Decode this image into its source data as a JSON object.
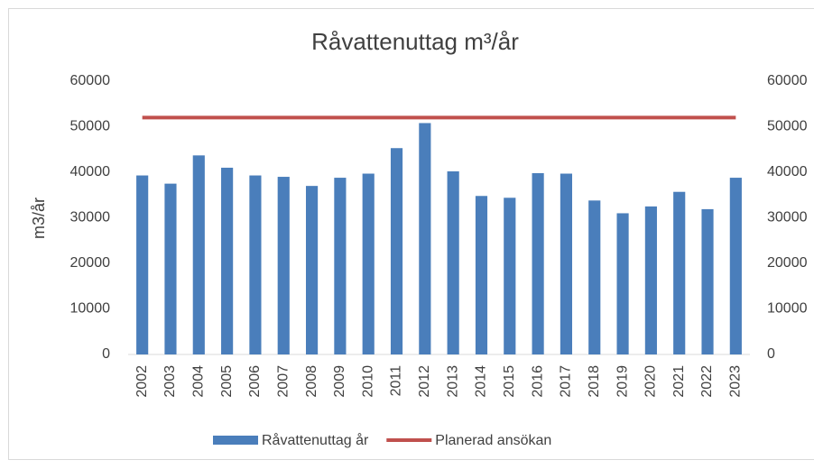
{
  "chart_data": {
    "type": "bar",
    "title": "Råvattenuttag m³/år",
    "y_label": "m3/år",
    "categories": [
      "2002",
      "2003",
      "2004",
      "2005",
      "2006",
      "2007",
      "2008",
      "2009",
      "2010",
      "2011",
      "2012",
      "2013",
      "2014",
      "2015",
      "2016",
      "2017",
      "2018",
      "2019",
      "2020",
      "2021",
      "2022",
      "2023"
    ],
    "series": [
      {
        "name": "Råvattenuttag år",
        "type": "bar",
        "color": "#4a7ebb",
        "values": [
          39300,
          37500,
          43700,
          41000,
          39300,
          39000,
          37000,
          38800,
          39700,
          45300,
          50800,
          40200,
          34800,
          34400,
          39800,
          39700,
          33800,
          31000,
          32500,
          35700,
          31900,
          38800
        ]
      },
      {
        "name": "Planerad ansökan",
        "type": "line",
        "axis": "y2",
        "color": "#c0504d",
        "values": [
          52000,
          52000,
          52000,
          52000,
          52000,
          52000,
          52000,
          52000,
          52000,
          52000,
          52000,
          52000,
          52000,
          52000,
          52000,
          52000,
          52000,
          52000,
          52000,
          52000,
          52000,
          52000
        ]
      }
    ],
    "ylim": [
      0,
      60000
    ],
    "yticks": [
      0,
      10000,
      20000,
      30000,
      40000,
      50000,
      60000
    ],
    "y2lim": [
      0,
      60000
    ],
    "y2ticks": [
      0,
      10000,
      20000,
      30000,
      40000,
      50000,
      60000
    ],
    "grid": false,
    "legend": "bottom"
  }
}
